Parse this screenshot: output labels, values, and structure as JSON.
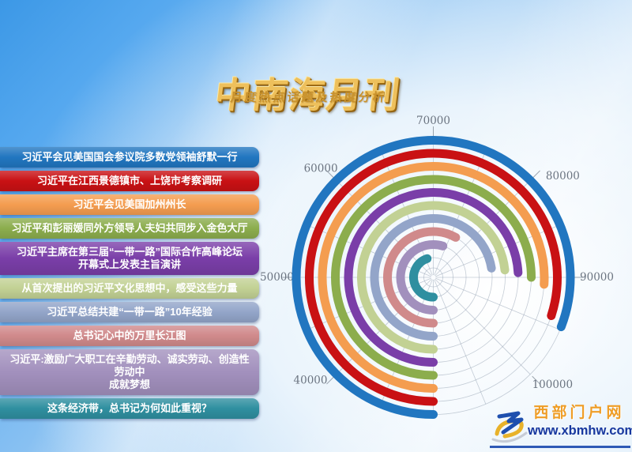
{
  "header": {
    "title": "中南海月刊",
    "subtitle": "月度热点话题及热度分析"
  },
  "topics": {
    "items": [
      {
        "label": "习近平会见美国国会参议院多数党领袖舒默一行",
        "color": "#2176c0",
        "value": 94700
      },
      {
        "label": "习近平在江西景德镇市、上饶市考察调研",
        "color": "#c91114",
        "value": 94000
      },
      {
        "label": "习近平会见美国加州州长",
        "color": "#f49d50",
        "value": 90800
      },
      {
        "label": "习近平和彭丽媛同外方领导人夫妇共同步入金色大厅",
        "color": "#8cad4d",
        "value": 90000
      },
      {
        "label": "习近平主席在第三届“一带一路”国际合作高峰论坛\n开幕式上发表主旨演讲",
        "color": "#7a3ea8",
        "value": 89300
      },
      {
        "label": "从首次提出的习近平文化思想中，感受这些力量",
        "color": "#c2d194",
        "value": 88700
      },
      {
        "label": "习近平总结共建“一带一路”10年经验",
        "color": "#93a5c9",
        "value": 88000
      },
      {
        "label": "总书记心中的万里长江图",
        "color": "#d08a8b",
        "value": 76500
      },
      {
        "label": "习近平:激励广大职工在辛勤劳动、诚实劳动、创造性劳动中\n成就梦想",
        "color": "#a290bd",
        "value": 73800
      },
      {
        "label": "这条经济带，总书记为何如此重视？",
        "color": "#2f8fa0",
        "value": 66000
      }
    ]
  },
  "chart_data": {
    "type": "bar",
    "polar": true,
    "title": "月度热点话题及热度分析",
    "categories": [
      "习近平会见美国国会参议院多数党领袖舒默一行",
      "习近平在江西景德镇市、上饶市考察调研",
      "习近平会见美国加州州长",
      "习近平和彭丽媛同外方领导人夫妇共同步入金色大厅",
      "习近平主席在第三届“一带一路”国际合作高峰论坛开幕式上发表主旨演讲",
      "从首次提出的习近平文化思想中，感受这些力量",
      "习近平总结共建“一带一路”10年经验",
      "总书记心中的万里长江图",
      "习近平:激励广大职工在辛勤劳动、诚实劳动、创造性劳动中成就梦想",
      "这条经济带，总书记为何如此重视？"
    ],
    "values": [
      94700,
      94000,
      90800,
      90000,
      89300,
      88700,
      88000,
      76500,
      73800,
      66000
    ],
    "colors": [
      "#2176c0",
      "#c91114",
      "#f49d50",
      "#8cad4d",
      "#7a3ea8",
      "#c2d194",
      "#93a5c9",
      "#d08a8b",
      "#a290bd",
      "#2f8fa0"
    ],
    "angle_axis": {
      "min": 30000,
      "max": 110000,
      "interval": 10000,
      "tick_labels": [
        "40000",
        "50000",
        "60000",
        "70000",
        "80000",
        "90000",
        "100000"
      ],
      "start": "bottom",
      "direction": "clockwise"
    },
    "radius_axis": {
      "type": "category",
      "order": "rank 1 outermost, rank 10 innermost"
    },
    "legend_position": "left list of colored chips",
    "grid": true
  },
  "logo": {
    "site_name": "西部门户网",
    "url": "www.xbmhw.com"
  }
}
